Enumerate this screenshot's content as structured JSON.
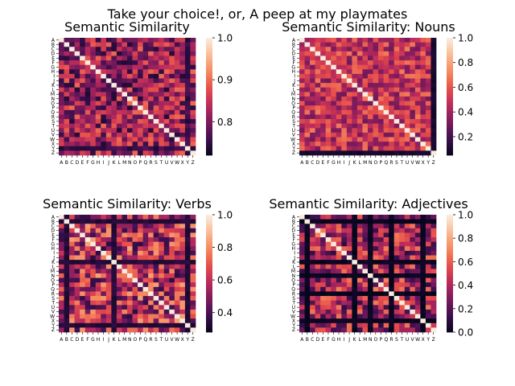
{
  "suptitle": "Take your choice!, or, A peep at my playmates",
  "colormap": [
    "#03051a",
    "#3b0f4e",
    "#7a1a5c",
    "#b82a5c",
    "#e64d4a",
    "#f5875e",
    "#f9bb93",
    "#faebdd"
  ],
  "chart_data": [
    {
      "type": "heatmap",
      "title": "Semantic Similarity",
      "labels": [
        "A",
        "B",
        "C",
        "D",
        "E",
        "F",
        "G",
        "H",
        "I",
        "J",
        "K",
        "L",
        "M",
        "N",
        "O",
        "P",
        "Q",
        "R",
        "S",
        "T",
        "U",
        "V",
        "W",
        "X",
        "Y",
        "Z"
      ],
      "vmin": 0.72,
      "vmax": 1.0,
      "colorbar_ticks": [
        0.8,
        0.9,
        1.0
      ],
      "colorbar_tick_labels": [
        "0.8",
        "0.9",
        "1.0"
      ],
      "diagonal": 1.0,
      "offdiag_range": [
        0.74,
        0.9
      ],
      "low_rows": [
        "Y"
      ],
      "low_value": 0.74,
      "seed": 11
    },
    {
      "type": "heatmap",
      "title": "Semantic Similarity: Nouns",
      "labels": [
        "A",
        "B",
        "C",
        "D",
        "E",
        "F",
        "G",
        "H",
        "I",
        "J",
        "K",
        "L",
        "M",
        "N",
        "O",
        "P",
        "Q",
        "R",
        "S",
        "T",
        "U",
        "V",
        "W",
        "X",
        "Y",
        "Z"
      ],
      "vmin": 0.05,
      "vmax": 1.0,
      "colorbar_ticks": [
        0.2,
        0.4,
        0.6,
        0.8,
        1.0
      ],
      "colorbar_tick_labels": [
        "0.2",
        "0.4",
        "0.6",
        "0.8",
        "1.0"
      ],
      "diagonal": 1.0,
      "offdiag_range": [
        0.3,
        0.7
      ],
      "low_rows": [
        "Z"
      ],
      "low_value": 0.08,
      "seed": 23
    },
    {
      "type": "heatmap",
      "title": "Semantic Similarity: Verbs",
      "labels": [
        "A",
        "B",
        "C",
        "D",
        "E",
        "F",
        "G",
        "H",
        "I",
        "J",
        "K",
        "L",
        "M",
        "N",
        "O",
        "P",
        "Q",
        "R",
        "S",
        "T",
        "U",
        "V",
        "W",
        "X",
        "Y",
        "Z"
      ],
      "vmin": 0.28,
      "vmax": 1.0,
      "colorbar_ticks": [
        0.4,
        0.6,
        0.8,
        1.0
      ],
      "colorbar_tick_labels": [
        "0.4",
        "0.6",
        "0.8",
        "1.0"
      ],
      "diagonal": 1.0,
      "offdiag_range": [
        0.35,
        0.85
      ],
      "low_rows": [
        "B",
        "K",
        "Y"
      ],
      "low_value": 0.32,
      "seed": 37
    },
    {
      "type": "heatmap",
      "title": "Semantic Similarity: Adjectives",
      "labels": [
        "A",
        "B",
        "C",
        "D",
        "E",
        "F",
        "G",
        "H",
        "I",
        "J",
        "K",
        "L",
        "M",
        "N",
        "O",
        "P",
        "Q",
        "R",
        "S",
        "T",
        "U",
        "V",
        "W",
        "X",
        "Y",
        "Z"
      ],
      "vmin": 0.0,
      "vmax": 1.0,
      "colorbar_ticks": [
        0.0,
        0.2,
        0.4,
        0.6,
        0.8,
        1.0
      ],
      "colorbar_tick_labels": [
        "0.0",
        "0.2",
        "0.4",
        "0.6",
        "0.8",
        "1.0"
      ],
      "diagonal": 1.0,
      "offdiag_range": [
        0.1,
        0.7
      ],
      "low_rows": [
        "B",
        "K",
        "N",
        "R",
        "X"
      ],
      "low_value": 0.0,
      "seed": 53
    }
  ]
}
